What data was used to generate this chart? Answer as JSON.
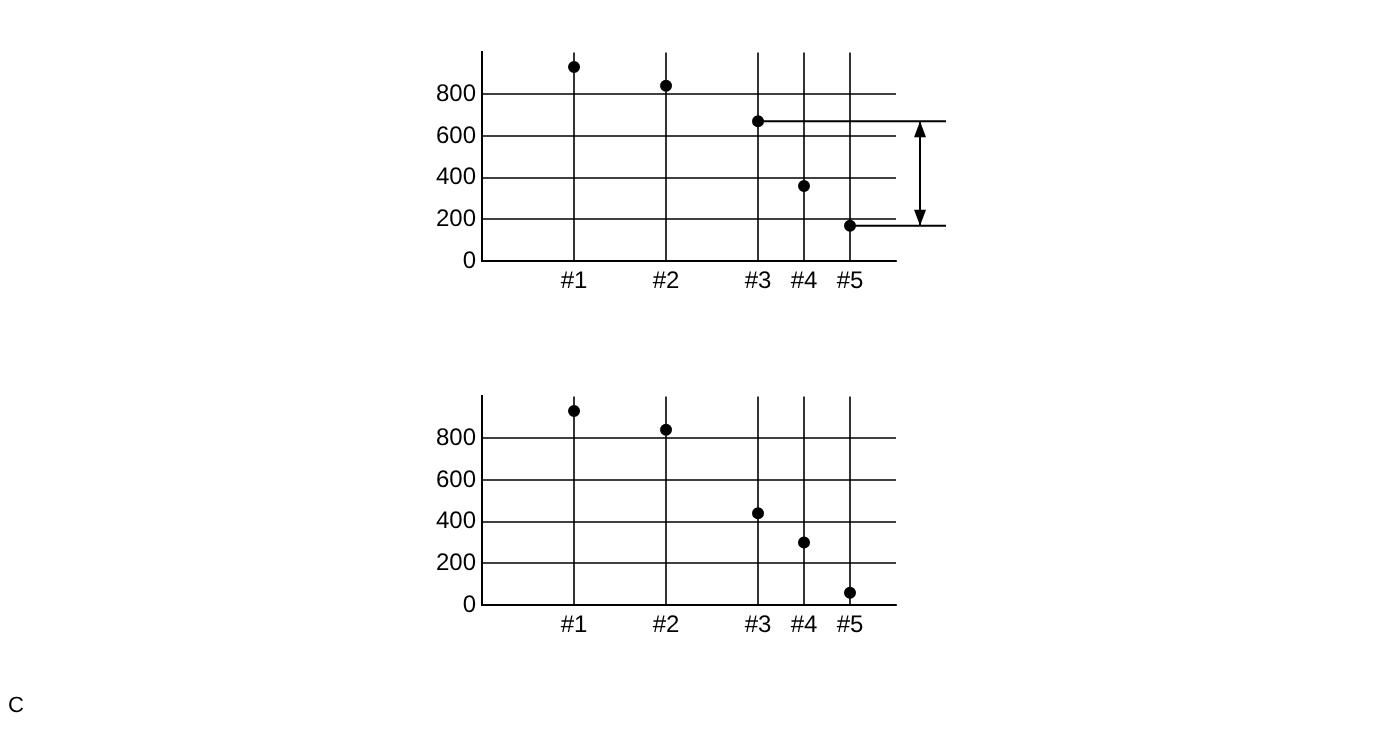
{
  "chart_data": [
    {
      "type": "scatter",
      "categories": [
        null,
        null,
        "#1",
        null,
        "#2",
        null,
        "#3",
        "#4",
        "#5",
        null
      ],
      "values": [
        null,
        null,
        930,
        null,
        840,
        null,
        670,
        360,
        170,
        null
      ],
      "color": "#000000",
      "marker": "circle",
      "ylim": [
        0,
        1000
      ],
      "yticks": [
        0,
        200,
        400,
        600,
        800
      ],
      "grid": true,
      "ref_lines": [
        {
          "axis": "y",
          "value": 670
        },
        {
          "axis": "y",
          "value": 170
        }
      ]
    },
    {
      "type": "scatter",
      "categories": [
        null,
        null,
        "#1",
        null,
        "#2",
        null,
        "#3",
        "#4",
        "#5",
        null
      ],
      "values": [
        null,
        null,
        930,
        null,
        840,
        null,
        440,
        300,
        60,
        null
      ],
      "color": "#000000",
      "marker": "circle",
      "ylim": [
        0,
        1000
      ],
      "yticks": [
        0,
        200,
        400,
        600,
        800
      ],
      "grid": true,
      "annotations": [
        "C"
      ]
    }
  ]
}
